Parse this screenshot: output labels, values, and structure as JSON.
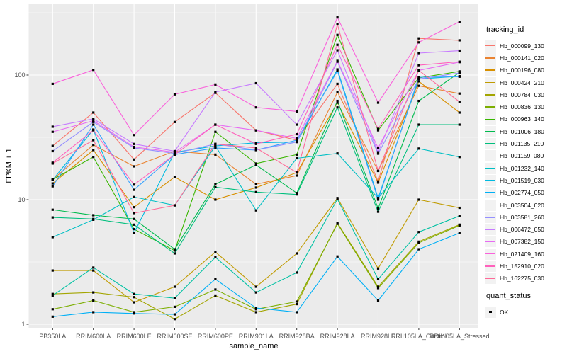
{
  "chart_data": {
    "type": "line",
    "title": "",
    "xlabel": "sample_name",
    "ylabel": "FPKM + 1",
    "y_scale": "log10",
    "y_ticks": [
      1,
      10,
      100
    ],
    "y_minor_gridlines": [
      3.162,
      31.62,
      316.2
    ],
    "ylim": [
      0.94,
      370
    ],
    "grid": true,
    "legend_position": "right",
    "panel_bg": "#EBEBEB",
    "grid_color": "#FFFFFF",
    "point_color": "#000000",
    "tick_color": "#333333",
    "legend_title": "tracking_id",
    "quant_legend": {
      "title": "quant_status",
      "items": [
        {
          "label": "OK"
        }
      ]
    },
    "categories": [
      "PB350LA",
      "RRIM600LA",
      "RRIM600LE",
      "RRIM600SE",
      "RRIM600PE",
      "RRIM901LA",
      "RRIM928BA",
      "RRIM928LA",
      "RRIM928LE",
      "RRII105LA_Control",
      "RRII105LA_Stressed"
    ],
    "series": [
      {
        "name": "Hb_000099_130",
        "color": "#F8766D",
        "values": [
          27,
          50,
          21,
          42,
          72,
          36,
          30,
          85,
          14,
          197,
          190
        ]
      },
      {
        "name": "Hb_000141_020",
        "color": "#EA8331",
        "values": [
          14.5,
          27.5,
          18.5,
          24.5,
          23,
          13.3,
          15.6,
          73,
          17,
          82,
          71
        ]
      },
      {
        "name": "Hb_000196_080",
        "color": "#D89000",
        "values": [
          13.5,
          25,
          8.7,
          15.2,
          10,
          12.5,
          16.5,
          60,
          13.7,
          89,
          50
        ]
      },
      {
        "name": "Hb_000424_210",
        "color": "#C09B00",
        "values": [
          2.7,
          2.7,
          1.5,
          2.0,
          3.8,
          2.0,
          3.7,
          10.3,
          2.8,
          10,
          8.6
        ]
      },
      {
        "name": "Hb_000784_030",
        "color": "#A3A500",
        "values": [
          1.75,
          1.8,
          1.65,
          1.1,
          1.7,
          1.25,
          1.45,
          6.5,
          2.0,
          4.6,
          6.3
        ]
      },
      {
        "name": "Hb_000836_130",
        "color": "#7CAE00",
        "values": [
          1.32,
          1.55,
          1.25,
          1.38,
          1.9,
          1.32,
          1.52,
          6.4,
          1.95,
          4.5,
          6.2
        ]
      },
      {
        "name": "Hb_000963_140",
        "color": "#39B600",
        "values": [
          14.5,
          22,
          5.8,
          3.9,
          35,
          19.5,
          23,
          210,
          36,
          95,
          107
        ]
      },
      {
        "name": "Hb_001006_180",
        "color": "#00BB4E",
        "values": [
          8.3,
          7.5,
          7.0,
          4.0,
          13.3,
          19,
          11.3,
          62,
          8.5,
          62,
          105
        ]
      },
      {
        "name": "Hb_001135_210",
        "color": "#00BF7D",
        "values": [
          7.2,
          7.0,
          6.3,
          3.7,
          12.6,
          11.5,
          11.0,
          55,
          8.0,
          40,
          40
        ]
      },
      {
        "name": "Hb_001159_080",
        "color": "#00C1A3",
        "values": [
          1.7,
          2.85,
          1.75,
          1.62,
          3.45,
          1.8,
          2.6,
          10.1,
          2.3,
          5.5,
          7.4
        ]
      },
      {
        "name": "Hb_001232_140",
        "color": "#00BFC4",
        "values": [
          5.0,
          6.9,
          10.5,
          9.0,
          27,
          8.2,
          21.5,
          23.5,
          10.3,
          25.7,
          22
        ]
      },
      {
        "name": "Hb_001519_030",
        "color": "#00BAE0",
        "values": [
          14.4,
          36.5,
          5.4,
          24,
          27,
          28.6,
          29,
          111,
          10.3,
          93,
          98
        ]
      },
      {
        "name": "Hb_002774_050",
        "color": "#00B0F6",
        "values": [
          1.15,
          1.25,
          1.22,
          1.2,
          2.3,
          1.35,
          1.25,
          3.5,
          1.55,
          4.0,
          5.4
        ]
      },
      {
        "name": "Hb_003504_020",
        "color": "#35A2FF",
        "values": [
          12.8,
          40,
          12,
          23,
          26,
          25,
          30,
          108,
          10.0,
          96,
          97
        ]
      },
      {
        "name": "Hb_003581_260",
        "color": "#9590FF",
        "values": [
          24.5,
          42,
          26,
          23.5,
          28,
          25,
          29,
          128,
          23.4,
          93,
          104
        ]
      },
      {
        "name": "Hb_006472_050",
        "color": "#C77CFF",
        "values": [
          38.5,
          44.5,
          28,
          24.5,
          73,
          86,
          40,
          158,
          24,
          150,
          157
        ]
      },
      {
        "name": "Hb_007382_150",
        "color": "#E76BF3",
        "values": [
          35,
          43,
          26.5,
          24,
          40,
          36,
          31,
          130,
          26,
          109,
          127
        ]
      },
      {
        "name": "Hb_021409_160",
        "color": "#FA62DB",
        "values": [
          85,
          110,
          33,
          70,
          84,
          55,
          51,
          290,
          60,
          183,
          268
        ]
      },
      {
        "name": "Hb_152910_020",
        "color": "#FF62BC",
        "values": [
          19.8,
          36,
          13.2,
          23,
          40,
          28,
          33.5,
          175,
          37,
          120,
          128
        ]
      },
      {
        "name": "Hb_162275_030",
        "color": "#FF6A98",
        "values": [
          19.5,
          30,
          7.8,
          9.0,
          28,
          26,
          16.5,
          255,
          17,
          109,
          61
        ]
      }
    ]
  }
}
